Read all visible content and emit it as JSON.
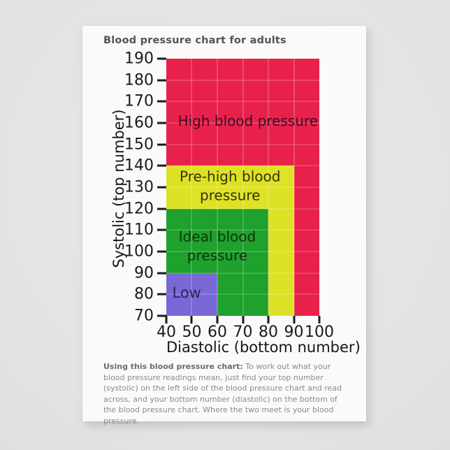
{
  "card": {
    "title": "Blood pressure chart for adults",
    "footer_bold": "Using this blood pressure chart:",
    "footer_text": " To work out what your blood pressure readings mean, just find your top number (systolic) on the left side of the blood pressure chart and read across, and your bottom number (diastolic) on the bottom of the blood pressure chart. Where the two meet is your blood pressure."
  },
  "chart_data": {
    "type": "area",
    "title": "Blood pressure chart for adults",
    "xlabel": "Diastolic (bottom number)",
    "ylabel": "Systolic (top number)",
    "xlim": [
      40,
      100
    ],
    "ylim": [
      70,
      190
    ],
    "x_ticks": [
      40,
      50,
      60,
      70,
      80,
      90,
      100
    ],
    "y_ticks": [
      70,
      80,
      90,
      100,
      110,
      120,
      130,
      140,
      150,
      160,
      170,
      180,
      190
    ],
    "grid": true,
    "legend": "none",
    "regions": [
      {
        "name": "high",
        "label": "High blood pressure",
        "color": "#e8214b",
        "text_color": "#3c0e20",
        "x": [
          40,
          100
        ],
        "y": [
          70,
          190
        ],
        "label_at": {
          "x": 72,
          "y": 161
        }
      },
      {
        "name": "pre_high",
        "label": "Pre-high blood pressure",
        "color": "#dde226",
        "text_color": "#31330a",
        "x": [
          40,
          90
        ],
        "y": [
          70,
          140
        ],
        "label_at": {
          "x": 65,
          "y": 130.5
        }
      },
      {
        "name": "ideal",
        "label": "Ideal blood pressure",
        "color": "#1fa12d",
        "text_color": "#10330f",
        "x": [
          40,
          80
        ],
        "y": [
          70,
          120
        ],
        "label_at": {
          "x": 60,
          "y": 102.5
        }
      },
      {
        "name": "low",
        "label": "Low",
        "color": "#7a68d6",
        "text_color": "#2e2458",
        "x": [
          40,
          60
        ],
        "y": [
          70,
          90
        ],
        "label_at": {
          "x": 48,
          "y": 80.5
        }
      }
    ]
  }
}
